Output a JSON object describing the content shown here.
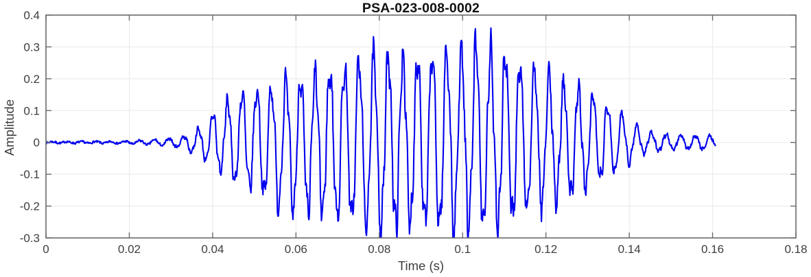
{
  "chart_data": {
    "type": "line",
    "title": "PSA-023-008-0002",
    "xlabel": "Time (s)",
    "ylabel": "Amplitude",
    "xlim": [
      0,
      0.18
    ],
    "ylim": [
      -0.3,
      0.4
    ],
    "xtick_values": [
      0,
      0.02,
      0.04,
      0.06,
      0.08,
      0.1,
      0.12,
      0.14,
      0.16,
      0.18
    ],
    "xtick_labels": [
      "0",
      "0.02",
      "0.04",
      "0.06",
      "0.08",
      "0.1",
      "0.12",
      "0.14",
      "0.16",
      "0.18"
    ],
    "ytick_values": [
      -0.3,
      -0.2,
      -0.1,
      0,
      0.1,
      0.2,
      0.3,
      0.4
    ],
    "ytick_labels": [
      "-0.3",
      "-0.2",
      "-0.1",
      "0",
      "0.1",
      "0.2",
      "0.3",
      "0.4"
    ],
    "grid": true,
    "legend": "none",
    "line_color": "#0000EE",
    "axis_color": "#6b6b6b",
    "tick_label_color": "#3d3d3d",
    "grid_color": "#ebebeb",
    "series": [
      {
        "name": "PSA-023-008-0002 signal",
        "description": "Amplitude-modulated oscillatory burst: silent until ~0.035 s, ramping oscillation (~285 Hz) peaking near ±0.30 at t=0.10 s, decaying by 0.143 s into a low noise band (~±0.02) that ends at 0.161 s",
        "carrier_hz": 285,
        "phase_t0": 0.0392,
        "t_start": 0,
        "t_end": 0.1607,
        "sample_dt": 0.00012,
        "peak_amplitude": 0.305,
        "min_amplitude": -0.275,
        "envelope_upper": [
          [
            0,
            0.002
          ],
          [
            0.018,
            0.003
          ],
          [
            0.023,
            0.006
          ],
          [
            0.027,
            0.009
          ],
          [
            0.03,
            0.012
          ],
          [
            0.033,
            0.018
          ],
          [
            0.0355,
            0.03
          ],
          [
            0.038,
            0.055
          ],
          [
            0.04,
            0.09
          ],
          [
            0.043,
            0.125
          ],
          [
            0.046,
            0.15
          ],
          [
            0.05,
            0.165
          ],
          [
            0.054,
            0.175
          ],
          [
            0.058,
            0.19
          ],
          [
            0.062,
            0.2
          ],
          [
            0.066,
            0.215
          ],
          [
            0.07,
            0.23
          ],
          [
            0.074,
            0.25
          ],
          [
            0.078,
            0.26
          ],
          [
            0.082,
            0.265
          ],
          [
            0.086,
            0.27
          ],
          [
            0.09,
            0.275
          ],
          [
            0.094,
            0.285
          ],
          [
            0.098,
            0.3
          ],
          [
            0.103,
            0.305
          ],
          [
            0.106,
            0.29
          ],
          [
            0.11,
            0.275
          ],
          [
            0.114,
            0.245
          ],
          [
            0.118,
            0.225
          ],
          [
            0.122,
            0.2
          ],
          [
            0.126,
            0.18
          ],
          [
            0.13,
            0.16
          ],
          [
            0.134,
            0.13
          ],
          [
            0.138,
            0.095
          ],
          [
            0.141,
            0.06
          ],
          [
            0.144,
            0.035
          ],
          [
            0.148,
            0.026
          ],
          [
            0.153,
            0.022
          ],
          [
            0.1607,
            0.02
          ]
        ],
        "envelope_lower": [
          [
            0,
            0.002
          ],
          [
            0.018,
            0.003
          ],
          [
            0.023,
            0.006
          ],
          [
            0.027,
            0.009
          ],
          [
            0.03,
            0.012
          ],
          [
            0.033,
            0.018
          ],
          [
            0.0355,
            0.035
          ],
          [
            0.038,
            0.05
          ],
          [
            0.04,
            0.07
          ],
          [
            0.043,
            0.1
          ],
          [
            0.046,
            0.125
          ],
          [
            0.05,
            0.15
          ],
          [
            0.054,
            0.185
          ],
          [
            0.058,
            0.21
          ],
          [
            0.062,
            0.22
          ],
          [
            0.066,
            0.22
          ],
          [
            0.07,
            0.235
          ],
          [
            0.074,
            0.25
          ],
          [
            0.078,
            0.27
          ],
          [
            0.082,
            0.27
          ],
          [
            0.086,
            0.255
          ],
          [
            0.09,
            0.26
          ],
          [
            0.094,
            0.265
          ],
          [
            0.098,
            0.27
          ],
          [
            0.103,
            0.265
          ],
          [
            0.106,
            0.255
          ],
          [
            0.11,
            0.25
          ],
          [
            0.114,
            0.215
          ],
          [
            0.118,
            0.2
          ],
          [
            0.122,
            0.185
          ],
          [
            0.126,
            0.165
          ],
          [
            0.13,
            0.14
          ],
          [
            0.134,
            0.11
          ],
          [
            0.138,
            0.08
          ],
          [
            0.141,
            0.05
          ],
          [
            0.144,
            0.03
          ],
          [
            0.148,
            0.025
          ],
          [
            0.153,
            0.022
          ],
          [
            0.1607,
            0.02
          ]
        ],
        "hf_hz": 900,
        "hf_frac": 0.18,
        "noise_frac": 0.22,
        "noise_floor": 0.003,
        "noise_seed": 7
      }
    ]
  }
}
